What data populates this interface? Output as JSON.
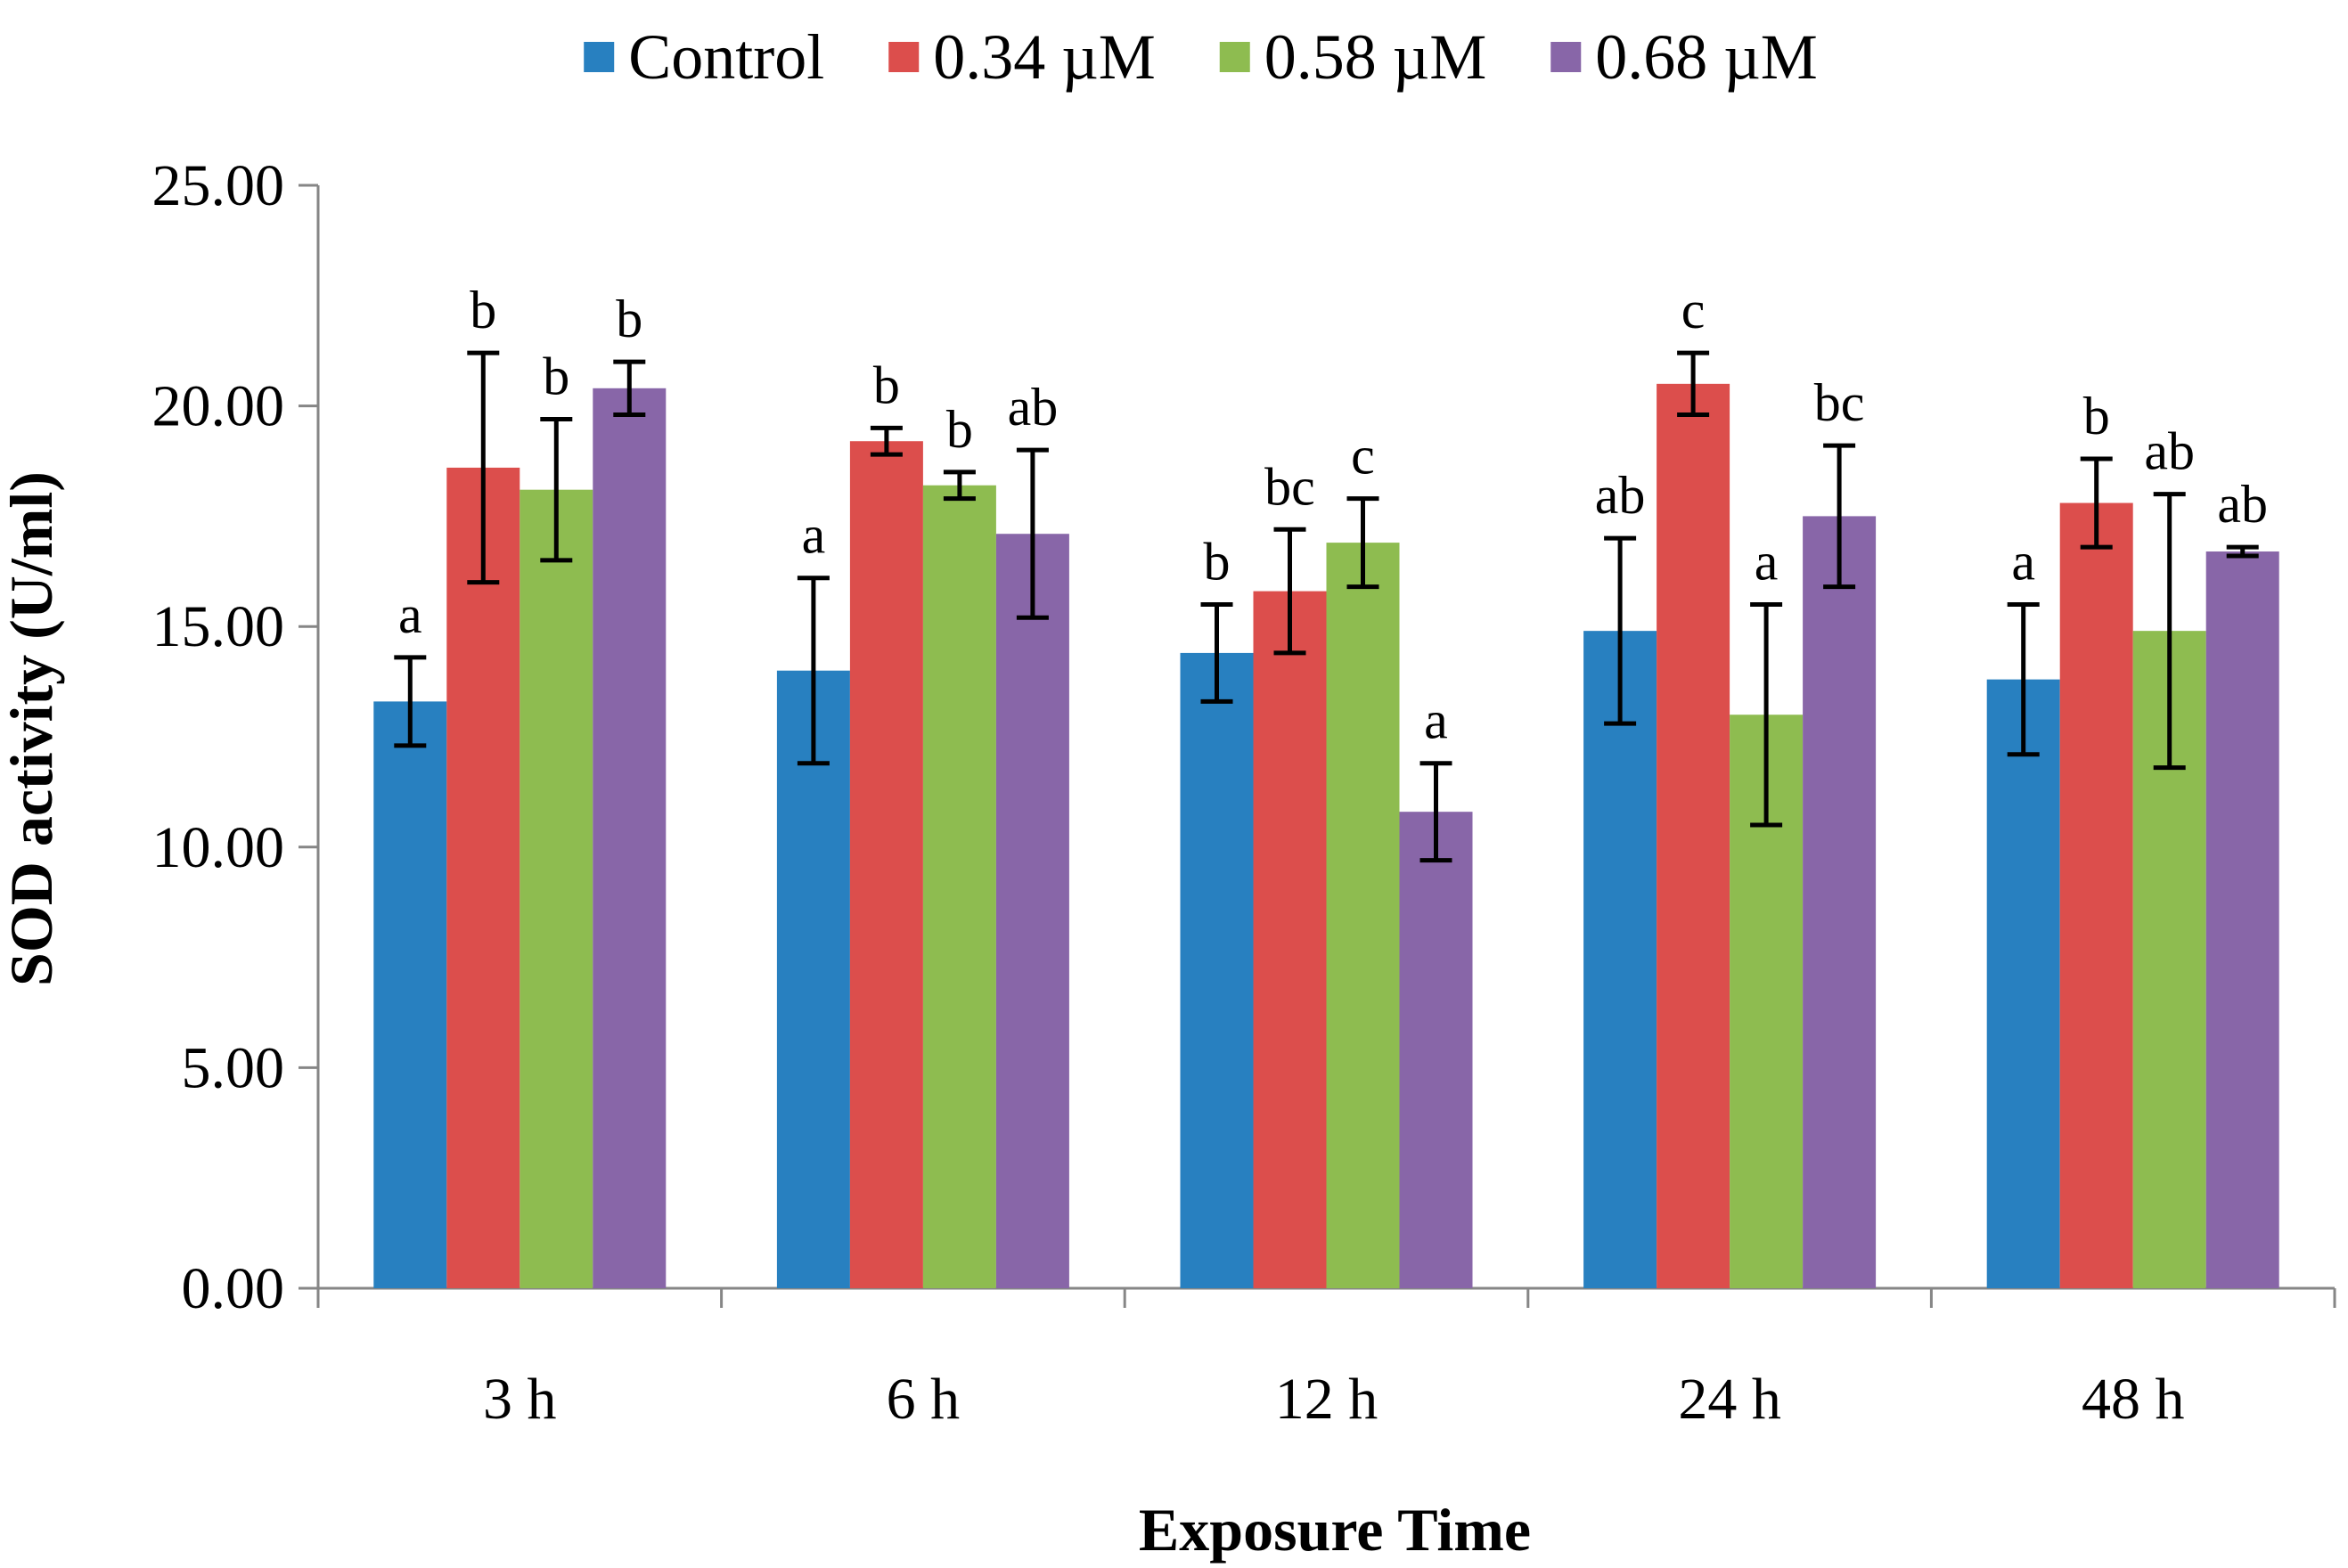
{
  "chart_data": {
    "type": "bar",
    "title": "",
    "xlabel": "Exposure Time",
    "ylabel": "SOD activity (U/ml)",
    "ylim": [
      0,
      25
    ],
    "yticks": [
      "0.00",
      "5.00",
      "10.00",
      "15.00",
      "20.00",
      "25.00"
    ],
    "categories": [
      "3 h",
      "6 h",
      "12 h",
      "24 h",
      "48 h"
    ],
    "legend_position": "top-center",
    "series": [
      {
        "name": "Control",
        "color": "#2880C0",
        "values": [
          13.3,
          14.0,
          14.4,
          14.9,
          13.8
        ],
        "errors": [
          1.0,
          2.1,
          1.1,
          2.1,
          1.7
        ],
        "labels": [
          "a",
          "a",
          "b",
          "ab",
          "a"
        ]
      },
      {
        "name": "0.34 µM",
        "color": "#DC4E4C",
        "values": [
          18.6,
          19.2,
          15.8,
          20.5,
          17.8
        ],
        "errors": [
          2.6,
          0.3,
          1.4,
          0.7,
          1.0
        ],
        "labels": [
          "b",
          "b",
          "bc",
          "c",
          "b"
        ]
      },
      {
        "name": "0.58 µM",
        "color": "#8EBC50",
        "values": [
          18.1,
          18.2,
          16.9,
          13.0,
          14.9
        ],
        "errors": [
          1.6,
          0.3,
          1.0,
          2.5,
          3.1
        ],
        "labels": [
          "b",
          "b",
          "c",
          "a",
          "ab"
        ]
      },
      {
        "name": "0.68 µM",
        "color": "#8866A8",
        "values": [
          20.4,
          17.1,
          10.8,
          17.5,
          16.7
        ],
        "errors": [
          0.6,
          1.9,
          1.1,
          1.6,
          0.1
        ],
        "labels": [
          "b",
          "ab",
          "a",
          "bc",
          "ab"
        ]
      }
    ]
  }
}
